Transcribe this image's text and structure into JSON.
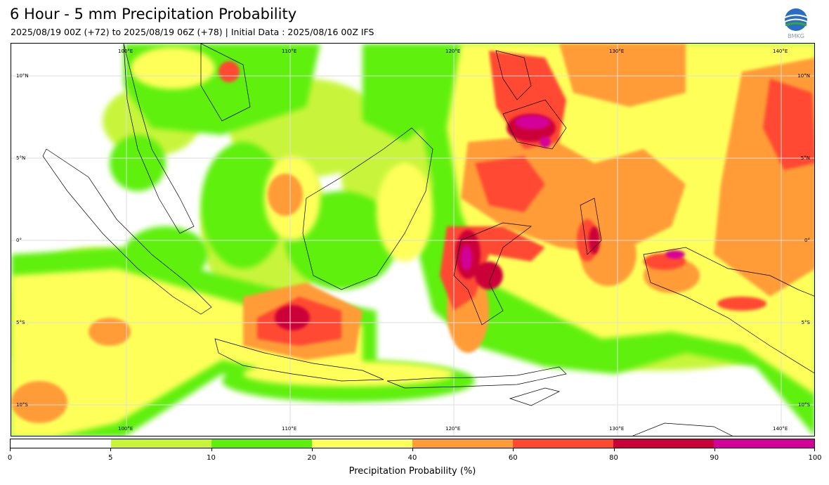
{
  "header": {
    "title": "6 Hour - 5 mm Precipitation Probability",
    "subtitle": "2025/08/19 00Z (+72) to 2025/08/19 06Z (+78) | Initial Data : 2025/08/16 00Z IFS"
  },
  "logo": {
    "text": "BMKG",
    "icon": "bmkg-logo"
  },
  "map": {
    "region": "Indonesia and Maritime Southeast Asia",
    "extent": {
      "lon_min": 93,
      "lon_max": 142,
      "lat_min": -12,
      "lat_max": 12
    },
    "gridlines": "on",
    "lon_labels": [
      "100°E",
      "110°E",
      "120°E",
      "130°E",
      "140°E"
    ],
    "lat_labels": [
      "10°N",
      "5°N",
      "0°",
      "5°S",
      "10°S"
    ]
  },
  "colorbar": {
    "label": "Precipitation Probability (%)",
    "boundaries": [
      "0",
      "5",
      "10",
      "20",
      "40",
      "60",
      "80",
      "90",
      "100"
    ],
    "colors": [
      "#ffffff",
      "#c8f53a",
      "#5ef00c",
      "#ffff5a",
      "#ff9c38",
      "#ff4a30",
      "#cc0038",
      "#d4009a"
    ]
  }
}
